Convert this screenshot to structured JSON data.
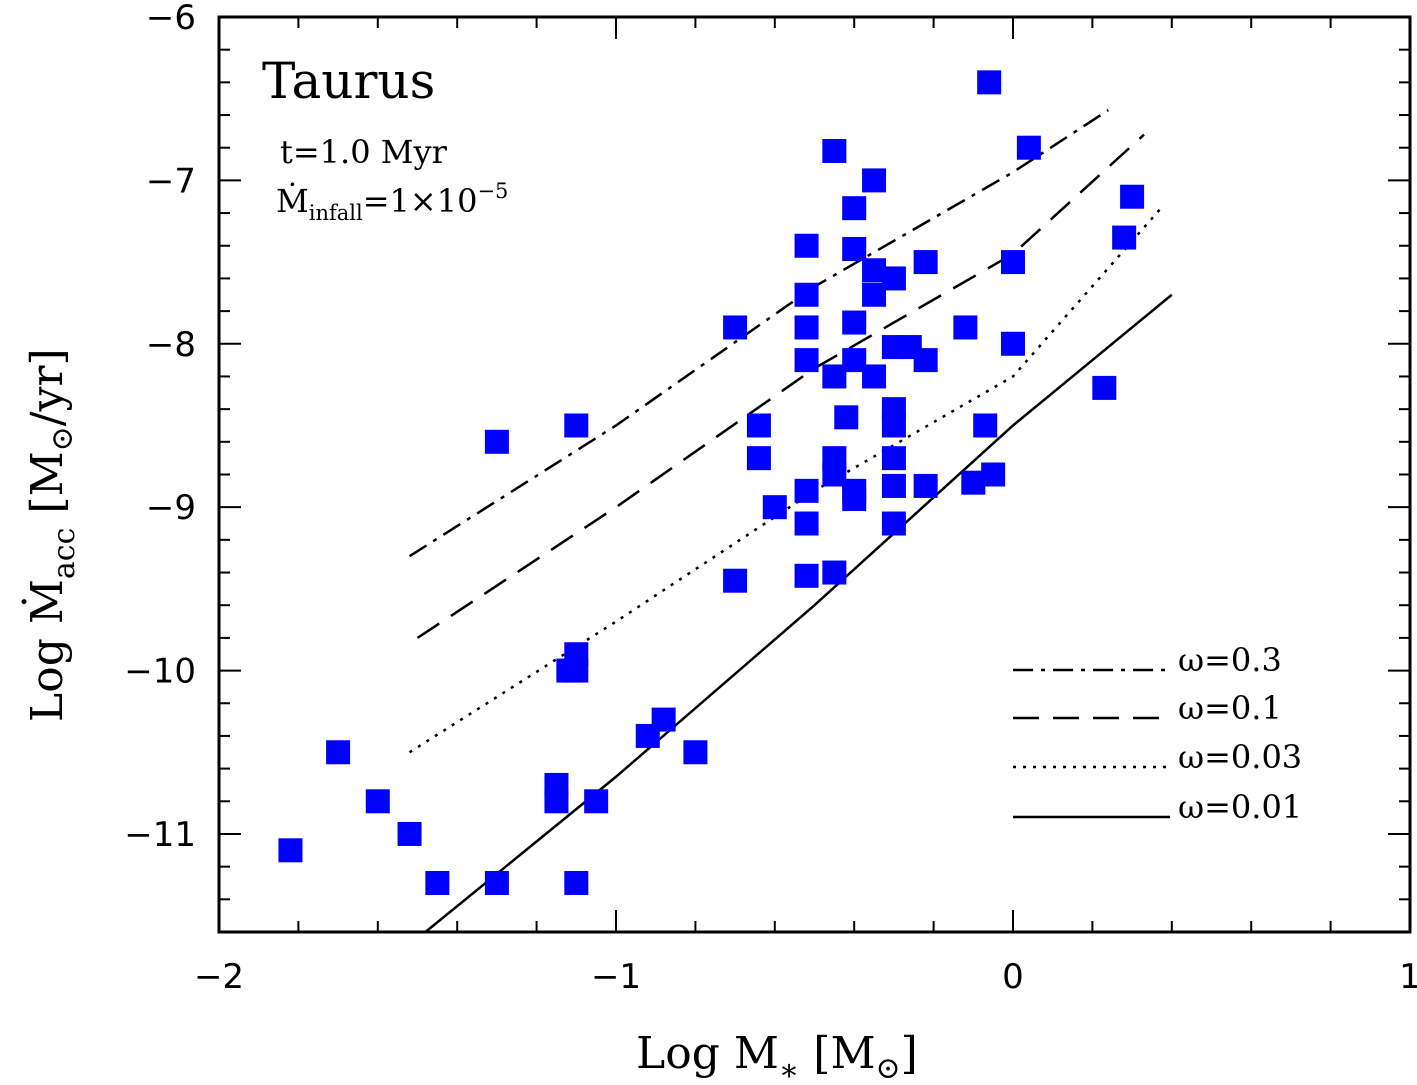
{
  "chart_data": {
    "type": "scatter",
    "title": "Taurus",
    "annotations": {
      "time": "t=1.0 Myr",
      "infall_prefix": "Ṁ",
      "infall_sub": "infall",
      "infall_value": "=1×10",
      "infall_exp": "−5"
    },
    "xlabel": {
      "main": "Log M",
      "sub": "∗",
      "unit_open": " [M",
      "unit_sun": "⊙",
      "unit_close": "]"
    },
    "ylabel": {
      "main": "Log Ṁ",
      "sub": "acc",
      "unit_open": " [M",
      "unit_sun": "⊙",
      "unit_close": "/yr]"
    },
    "xlim": [
      -2,
      1
    ],
    "ylim": [
      -11.6,
      -6
    ],
    "x_ticks": [
      {
        "v": -2,
        "label": "−2"
      },
      {
        "v": -1,
        "label": "−1"
      },
      {
        "v": 0,
        "label": "0"
      },
      {
        "v": 1,
        "label": "1"
      }
    ],
    "y_ticks": [
      {
        "v": -6,
        "label": "−6"
      },
      {
        "v": -7,
        "label": "−7"
      },
      {
        "v": -8,
        "label": "−8"
      },
      {
        "v": -9,
        "label": "−9"
      },
      {
        "v": -10,
        "label": "−10"
      },
      {
        "v": -11,
        "label": "−11"
      }
    ],
    "x_minor_step": 0.2,
    "y_minor_step": 0.2,
    "points": [
      [
        -1.82,
        -11.1
      ],
      [
        -1.7,
        -10.5
      ],
      [
        -1.6,
        -10.8
      ],
      [
        -1.52,
        -11.0
      ],
      [
        -1.45,
        -11.3
      ],
      [
        -1.3,
        -11.3
      ],
      [
        -1.3,
        -8.6
      ],
      [
        -1.15,
        -10.7
      ],
      [
        -1.15,
        -10.8
      ],
      [
        -1.12,
        -10.0
      ],
      [
        -1.1,
        -9.9
      ],
      [
        -1.1,
        -10.0
      ],
      [
        -1.1,
        -11.3
      ],
      [
        -1.1,
        -8.5
      ],
      [
        -1.05,
        -10.8
      ],
      [
        -0.92,
        -10.4
      ],
      [
        -0.88,
        -10.3
      ],
      [
        -0.8,
        -10.5
      ],
      [
        -0.7,
        -9.45
      ],
      [
        -0.7,
        -7.9
      ],
      [
        -0.64,
        -8.5
      ],
      [
        -0.64,
        -8.7
      ],
      [
        -0.6,
        -9.0
      ],
      [
        -0.52,
        -9.42
      ],
      [
        -0.52,
        -9.1
      ],
      [
        -0.52,
        -8.9
      ],
      [
        -0.52,
        -8.1
      ],
      [
        -0.52,
        -7.9
      ],
      [
        -0.52,
        -7.7
      ],
      [
        -0.52,
        -7.4
      ],
      [
        -0.45,
        -9.4
      ],
      [
        -0.45,
        -8.8
      ],
      [
        -0.45,
        -8.7
      ],
      [
        -0.45,
        -8.2
      ],
      [
        -0.45,
        -6.82
      ],
      [
        -0.42,
        -8.45
      ],
      [
        -0.4,
        -8.9
      ],
      [
        -0.4,
        -8.95
      ],
      [
        -0.4,
        -8.1
      ],
      [
        -0.4,
        -7.87
      ],
      [
        -0.4,
        -7.42
      ],
      [
        -0.4,
        -7.17
      ],
      [
        -0.35,
        -8.2
      ],
      [
        -0.35,
        -7.7
      ],
      [
        -0.35,
        -7.55
      ],
      [
        -0.35,
        -7.0
      ],
      [
        -0.3,
        -9.1
      ],
      [
        -0.3,
        -8.87
      ],
      [
        -0.3,
        -8.7
      ],
      [
        -0.3,
        -8.5
      ],
      [
        -0.3,
        -8.4
      ],
      [
        -0.3,
        -8.02
      ],
      [
        -0.3,
        -7.6
      ],
      [
        -0.26,
        -8.02
      ],
      [
        -0.22,
        -8.1
      ],
      [
        -0.22,
        -8.87
      ],
      [
        -0.22,
        -7.5
      ],
      [
        -0.12,
        -7.9
      ],
      [
        -0.1,
        -8.85
      ],
      [
        -0.07,
        -8.5
      ],
      [
        -0.05,
        -8.8
      ],
      [
        -0.06,
        -6.4
      ],
      [
        0.0,
        -7.5
      ],
      [
        0.0,
        -8.0
      ],
      [
        0.04,
        -6.8
      ],
      [
        0.23,
        -8.27
      ],
      [
        0.28,
        -7.35
      ],
      [
        0.3,
        -7.1
      ]
    ],
    "series": [
      {
        "name": "ω=0.3",
        "dash": "dashdot",
        "x": [
          -1.52,
          -1.0,
          -0.5,
          0.0,
          0.24
        ],
        "y": [
          -9.3,
          -8.5,
          -7.65,
          -6.95,
          -6.57
        ]
      },
      {
        "name": "ω=0.1",
        "dash": "dash",
        "x": [
          -1.5,
          -1.0,
          -0.5,
          0.0,
          0.33
        ],
        "y": [
          -9.8,
          -9.0,
          -8.15,
          -7.45,
          -6.72
        ]
      },
      {
        "name": "ω=0.03",
        "dash": "dot",
        "x": [
          -1.52,
          -1.0,
          -0.5,
          0.0,
          0.38
        ],
        "y": [
          -10.5,
          -9.7,
          -8.9,
          -8.2,
          -7.15
        ]
      },
      {
        "name": "ω=0.01",
        "dash": "solid",
        "x": [
          -1.48,
          -1.0,
          -0.5,
          0.0,
          0.4
        ],
        "y": [
          -11.6,
          -10.65,
          -9.6,
          -8.5,
          -7.7
        ]
      }
    ],
    "legend_position": "bottom-right",
    "colors": {
      "points": "#0000ff",
      "lines": "#000000"
    }
  }
}
